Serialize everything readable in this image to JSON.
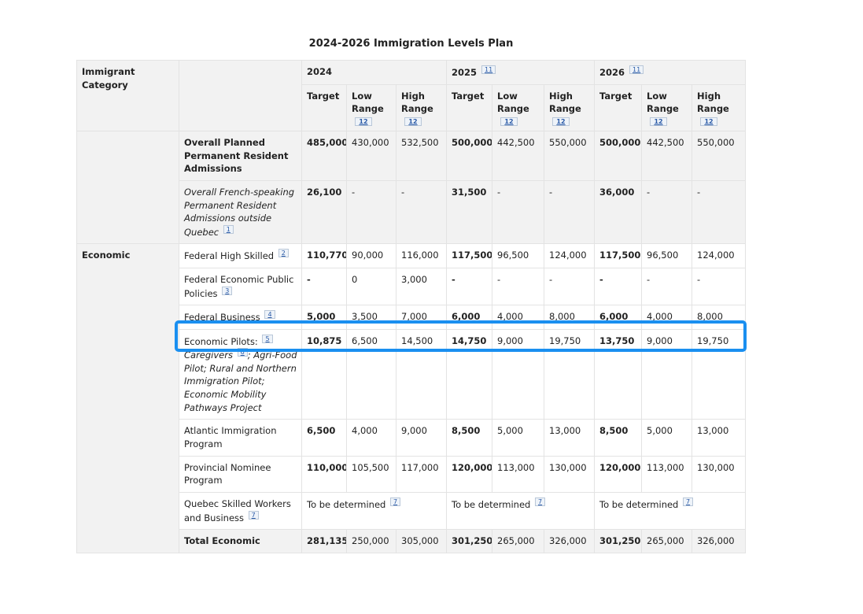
{
  "caption": "2024-2026 Immigration Levels Plan",
  "header": {
    "category": "Immigrant Category",
    "years": [
      {
        "label": "2024",
        "footnote": ""
      },
      {
        "label": "2025",
        "footnote": "11"
      },
      {
        "label": "2026",
        "footnote": "11"
      }
    ],
    "target": "Target",
    "low": "Low Range",
    "low_fn": "12",
    "high": "High Range",
    "high_fn": "12"
  },
  "rows": {
    "overall": {
      "label": "Overall Planned Permanent Resident Admissions",
      "v": [
        "485,000",
        "430,000",
        "532,500",
        "500,000",
        "442,500",
        "550,000",
        "500,000",
        "442,500",
        "550,000"
      ]
    },
    "french": {
      "label": "Overall French-speaking Permanent Resident Admissions outside Quebec",
      "fn": "1",
      "v": [
        "26,100",
        "-",
        "-",
        "31,500",
        "-",
        "-",
        "36,000",
        "-",
        "-"
      ]
    },
    "economic_label": "Economic",
    "fhs": {
      "label": "Federal High Skilled",
      "fn": "2",
      "v": [
        "110,770",
        "90,000",
        "116,000",
        "117,500",
        "96,500",
        "124,000",
        "117,500",
        "96,500",
        "124,000"
      ]
    },
    "fepp": {
      "label": "Federal Economic Public Policies",
      "fn": "3",
      "v": [
        "-",
        "0",
        "3,000",
        "-",
        "-",
        "-",
        "-",
        "-",
        "-"
      ]
    },
    "fb": {
      "label": "Federal Business",
      "fn": "4",
      "v": [
        "5,000",
        "3,500",
        "7,000",
        "6,000",
        "4,000",
        "8,000",
        "6,000",
        "4,000",
        "8,000"
      ]
    },
    "pilots": {
      "label": "Economic Pilots:",
      "fn": "5",
      "caregivers": "Caregivers",
      "fn2": "6",
      "rest": "; Agri-Food Pilot; Rural and Northern Immigration Pilot; Economic Mobility Pathways Project",
      "v": [
        "10,875",
        "6,500",
        "14,500",
        "14,750",
        "9,000",
        "19,750",
        "13,750",
        "9,000",
        "19,750"
      ]
    },
    "aip": {
      "label": "Atlantic Immigration Program",
      "v": [
        "6,500",
        "4,000",
        "9,000",
        "8,500",
        "5,000",
        "13,000",
        "8,500",
        "5,000",
        "13,000"
      ]
    },
    "pnp": {
      "label": "Provincial Nominee Program",
      "v": [
        "110,000",
        "105,500",
        "117,000",
        "120,000",
        "113,000",
        "130,000",
        "120,000",
        "113,000",
        "130,000"
      ]
    },
    "qsw": {
      "label": "Quebec Skilled Workers and Business",
      "fn": "7",
      "tbd": "To be determined",
      "tbd_fn": "7"
    },
    "total": {
      "label": "Total Economic",
      "v": [
        "281,135",
        "250,000",
        "305,000",
        "301,250",
        "265,000",
        "326,000",
        "301,250",
        "265,000",
        "326,000"
      ]
    }
  }
}
